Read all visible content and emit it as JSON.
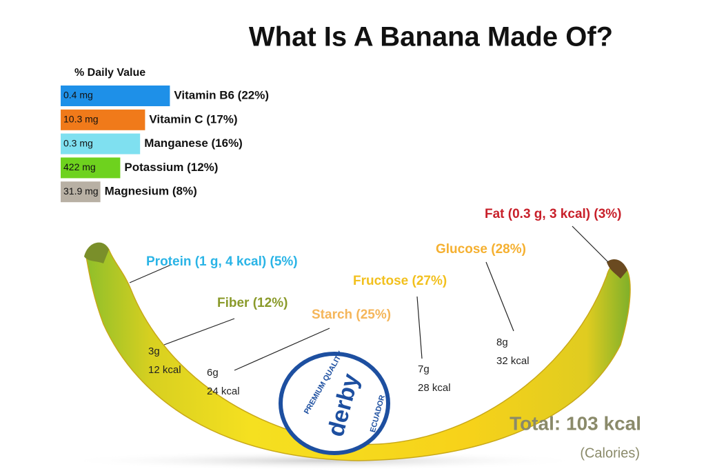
{
  "title": "What Is A Banana Made Of?",
  "daily_value": {
    "heading": "% Daily Value",
    "items": [
      {
        "amount": "0.4 mg",
        "label": "Vitamin B6 (22%)",
        "percent": 22,
        "color": "#1e90e8"
      },
      {
        "amount": "10.3 mg",
        "label": "Vitamin C (17%)",
        "percent": 17,
        "color": "#f07a1a"
      },
      {
        "amount": "0.3 mg",
        "label": "Manganese (16%)",
        "percent": 16,
        "color": "#7fe0f0"
      },
      {
        "amount": "422 mg",
        "label": "Potassium (12%)",
        "percent": 12,
        "color": "#6ed21e"
      },
      {
        "amount": "31.9 mg",
        "label": "Magnesium (8%)",
        "percent": 8,
        "color": "#b8b0a4"
      }
    ]
  },
  "components": {
    "protein": "Protein (1 g, 4 kcal) (5%)",
    "fiber": {
      "label": "Fiber (12%)",
      "grams": "3g",
      "kcal": "12 kcal"
    },
    "starch": {
      "label": "Starch (25%)",
      "grams": "6g",
      "kcal": "24 kcal"
    },
    "fructose": {
      "label": "Fructose (27%)",
      "grams": "7g",
      "kcal": "28 kcal"
    },
    "glucose": {
      "label": "Glucose (28%)",
      "grams": "8g",
      "kcal": "32 kcal"
    },
    "fat": "Fat (0.3 g, 3 kcal) (3%)"
  },
  "total": "Total: 103 kcal",
  "total_unit": "(Calories)",
  "logo": {
    "top": "PREMIUM QUALITY",
    "brand": "derby",
    "country": "ECUADOR"
  }
}
